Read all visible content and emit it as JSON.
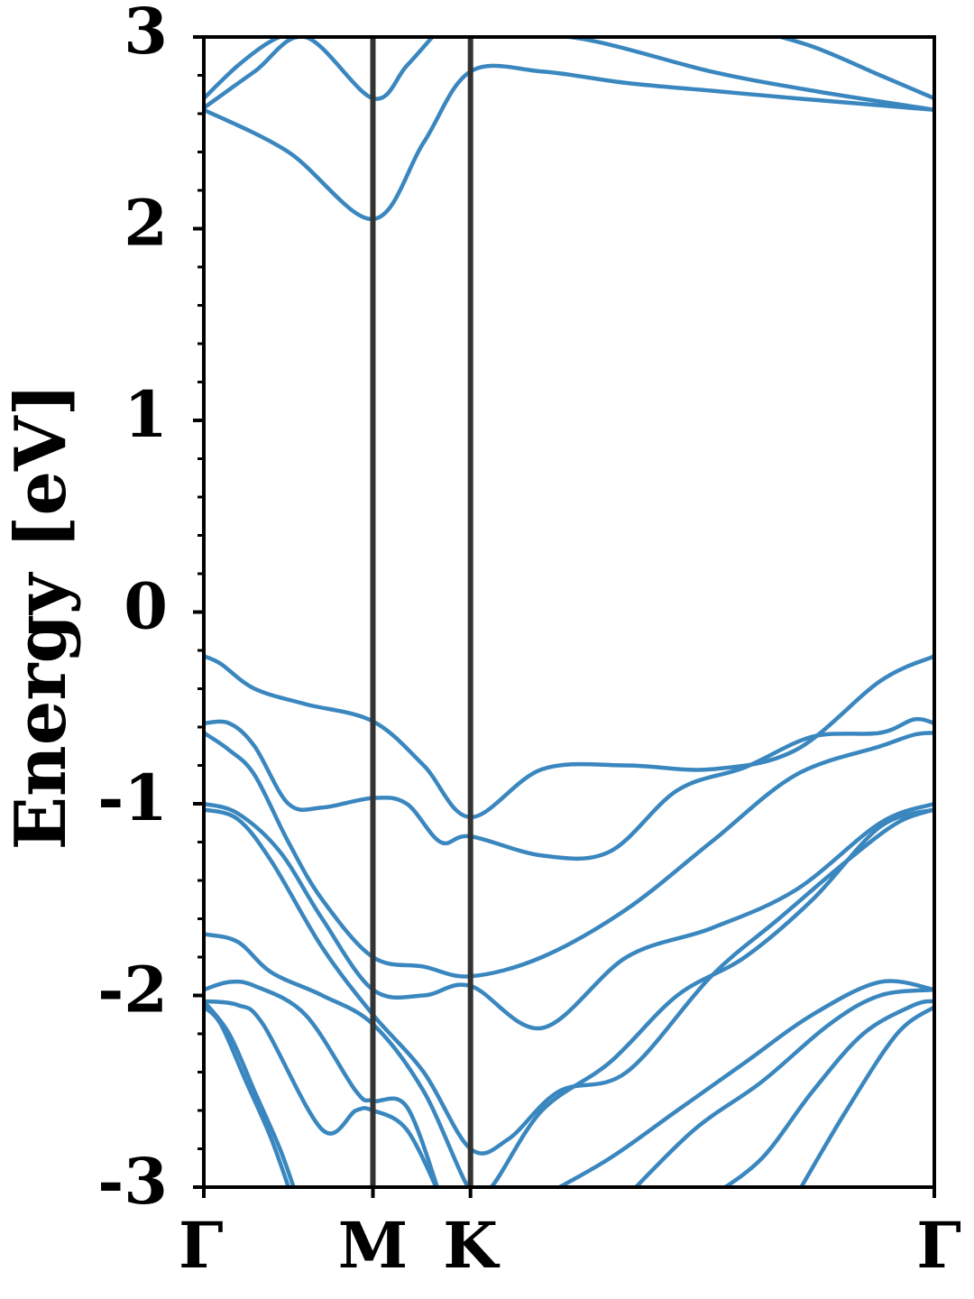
{
  "chart_data": {
    "type": "line",
    "ylabel": "Energy [eV]",
    "xlabel": "",
    "ylim": [
      -3,
      3
    ],
    "yticks": [
      "-3",
      "-2",
      "-1",
      "0",
      "1",
      "2",
      "3"
    ],
    "y_minor_step": 0.2,
    "kpath": {
      "labels": [
        "Γ",
        "M",
        "K",
        "Γ"
      ],
      "positions": [
        0,
        1,
        1.577,
        4.32
      ]
    },
    "grid": false,
    "colors": {
      "bands": "#3a87bf",
      "kline": "#333333",
      "axes": "#000000"
    },
    "series": [
      {
        "x": [
          0,
          0.5,
          1.0,
          1.3,
          1.577,
          2.0,
          2.5,
          3.0,
          3.5,
          4.32
        ],
        "y": [
          2.62,
          2.4,
          2.05,
          2.45,
          2.82,
          2.82,
          2.76,
          2.72,
          2.68,
          2.62
        ]
      },
      {
        "x": [
          0,
          0.3,
          0.6,
          1.0,
          1.2,
          1.4
        ],
        "y": [
          2.63,
          2.82,
          3.0,
          2.68,
          2.85,
          3.05
        ]
      },
      {
        "x": [
          0,
          0.2,
          0.4,
          0.6
        ],
        "y": [
          2.68,
          2.85,
          2.98,
          3.05
        ]
      },
      {
        "x": [
          1.7,
          2.3,
          3.0,
          3.6,
          4.32
        ],
        "y": [
          3.05,
          2.98,
          2.82,
          2.72,
          2.62
        ]
      },
      {
        "x": [
          3.2,
          3.6,
          4.0,
          4.32
        ],
        "y": [
          3.05,
          2.95,
          2.8,
          2.68
        ]
      },
      {
        "x": [
          0,
          0.1,
          0.3,
          0.6,
          1.0,
          1.3,
          1.577,
          2.0,
          2.5,
          3.0,
          3.5,
          4.0,
          4.32
        ],
        "y": [
          -0.23,
          -0.27,
          -0.4,
          -0.48,
          -0.57,
          -0.8,
          -1.07,
          -0.82,
          -0.8,
          -0.82,
          -0.72,
          -0.36,
          -0.23
        ]
      },
      {
        "x": [
          0,
          0.15,
          0.3,
          0.5,
          0.7,
          1.0,
          1.2,
          1.4,
          1.577,
          2.0,
          2.4,
          2.8,
          3.2,
          3.6,
          4.0,
          4.2,
          4.32
        ],
        "y": [
          -0.58,
          -0.58,
          -0.7,
          -1.0,
          -1.02,
          -0.97,
          -1.0,
          -1.2,
          -1.17,
          -1.27,
          -1.25,
          -0.93,
          -0.81,
          -0.65,
          -0.63,
          -0.56,
          -0.58
        ]
      },
      {
        "x": [
          0,
          0.15,
          0.3,
          0.5,
          0.7,
          1.0,
          1.3,
          1.577,
          2.0,
          2.5,
          3.0,
          3.5,
          4.0,
          4.2,
          4.32
        ],
        "y": [
          -0.63,
          -0.72,
          -0.85,
          -1.2,
          -1.5,
          -1.8,
          -1.85,
          -1.9,
          -1.8,
          -1.55,
          -1.2,
          -0.85,
          -0.7,
          -0.64,
          -0.63
        ]
      },
      {
        "x": [
          0,
          0.2,
          0.45,
          0.7,
          1.0,
          1.3,
          1.577,
          2.0,
          2.5,
          3.0,
          3.5,
          4.0,
          4.32
        ],
        "y": [
          -1.0,
          -1.05,
          -1.25,
          -1.6,
          -1.97,
          -2.0,
          -1.95,
          -2.17,
          -1.8,
          -1.65,
          -1.45,
          -1.1,
          -1.0
        ]
      },
      {
        "x": [
          0,
          0.2,
          0.4,
          0.7,
          1.0,
          1.3,
          1.577,
          1.8,
          2.1,
          2.5,
          3.0,
          3.4,
          3.8,
          4.1,
          4.32
        ],
        "y": [
          -1.03,
          -1.08,
          -1.3,
          -1.75,
          -2.1,
          -2.4,
          -2.8,
          -2.75,
          -2.5,
          -2.4,
          -1.9,
          -1.6,
          -1.3,
          -1.1,
          -1.03
        ]
      },
      {
        "x": [
          0,
          0.2,
          0.4,
          0.7,
          1.0,
          1.3,
          1.577,
          1.7,
          2.0,
          2.4,
          2.8,
          3.2,
          3.6,
          4.0,
          4.32
        ],
        "y": [
          -1.68,
          -1.72,
          -1.88,
          -2.0,
          -2.15,
          -2.5,
          -3.02,
          -3.0,
          -2.6,
          -2.35,
          -2.0,
          -1.8,
          -1.5,
          -1.12,
          -1.03
        ]
      },
      {
        "x": [
          0,
          0.15,
          0.3,
          0.6,
          0.9,
          1.0,
          1.2,
          1.4
        ],
        "y": [
          -1.97,
          -1.93,
          -1.95,
          -2.1,
          -2.5,
          -2.55,
          -2.58,
          -3.05
        ]
      },
      {
        "x": [
          0,
          0.2,
          0.35,
          0.7,
          0.9,
          1.0,
          1.2,
          1.4
        ],
        "y": [
          -2.03,
          -2.05,
          -2.15,
          -2.7,
          -2.6,
          -2.6,
          -2.7,
          -3.05
        ]
      },
      {
        "x": [
          0,
          0.15,
          0.3,
          0.45,
          0.55
        ],
        "y": [
          -2.03,
          -2.2,
          -2.5,
          -2.8,
          -3.05
        ]
      },
      {
        "x": [
          0,
          0.1,
          0.25,
          0.4,
          0.52
        ],
        "y": [
          -2.06,
          -2.15,
          -2.45,
          -2.75,
          -3.05
        ]
      },
      {
        "x": [
          2.0,
          2.4,
          2.8,
          3.2,
          3.6,
          4.0,
          4.32
        ],
        "y": [
          -3.05,
          -2.85,
          -2.6,
          -2.35,
          -2.1,
          -1.93,
          -1.97
        ]
      },
      {
        "x": [
          2.5,
          2.9,
          3.3,
          3.7,
          4.0,
          4.32
        ],
        "y": [
          -3.05,
          -2.7,
          -2.45,
          -2.15,
          -2.0,
          -1.97
        ]
      },
      {
        "x": [
          3.0,
          3.3,
          3.6,
          3.9,
          4.2,
          4.32
        ],
        "y": [
          -3.05,
          -2.85,
          -2.5,
          -2.2,
          -2.05,
          -2.03
        ]
      },
      {
        "x": [
          3.5,
          3.8,
          4.1,
          4.32
        ],
        "y": [
          -3.05,
          -2.6,
          -2.2,
          -2.06
        ]
      }
    ]
  }
}
